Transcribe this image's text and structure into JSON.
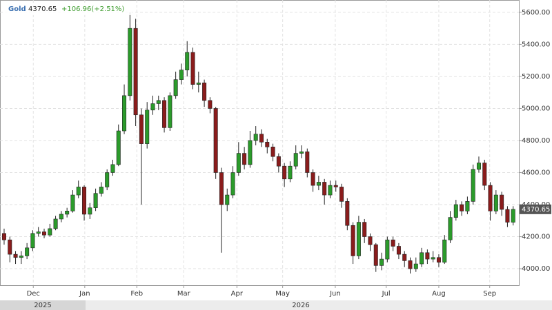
{
  "chart_data": {
    "type": "candlestick",
    "title": "Gold",
    "change_label": "+106.96(+2.51%)",
    "up_color": "#2b9b2b",
    "down_color": "#8a1c1c",
    "grid": true,
    "categories": [
      null,
      null,
      null,
      null,
      null,
      null,
      null,
      null,
      null,
      null,
      null,
      null,
      null,
      null,
      null,
      null,
      null,
      null,
      null,
      null,
      null,
      null,
      null,
      null,
      null,
      null,
      null,
      null,
      null,
      null,
      null,
      null,
      null,
      null,
      null,
      null,
      null,
      null,
      null,
      null,
      null,
      null,
      null,
      null,
      null,
      null,
      null,
      null,
      null,
      null,
      null,
      null,
      null,
      null,
      null,
      null,
      null,
      null,
      null,
      null,
      null,
      null,
      null,
      null,
      null,
      null,
      null,
      null,
      null,
      null,
      null,
      null,
      null,
      null,
      null,
      null,
      null,
      null,
      null,
      null,
      null,
      null,
      null,
      null,
      null,
      null,
      null,
      null,
      null,
      null
    ],
    "open": [
      4220,
      4180,
      4090,
      4070,
      4080,
      4130,
      4220,
      4230,
      4210,
      4250,
      4310,
      4340,
      4360,
      4460,
      4510,
      4340,
      4380,
      4470,
      4510,
      4600,
      4650,
      4860,
      5080,
      5500,
      4960,
      4780,
      4990,
      5030,
      5050,
      4880,
      5080,
      5180,
      5240,
      5350,
      5150,
      5160,
      5050,
      5000,
      4600,
      4400,
      4460,
      4600,
      4720,
      4650,
      4800,
      4840,
      4790,
      4760,
      4700,
      4640,
      4560,
      4640,
      4720,
      4730,
      4600,
      4520,
      4540,
      4460,
      4520,
      4510,
      4420,
      4270,
      4080,
      4290,
      4200,
      4150,
      4020,
      4060,
      4180,
      4140,
      4090,
      4050,
      4000,
      4030,
      4100,
      4060,
      4070,
      4040,
      4180,
      4320,
      4400,
      4360,
      4420,
      4620,
      4660,
      4520,
      4360,
      4460,
      4370,
      4290
    ],
    "high": [
      4250,
      4200,
      4110,
      4110,
      4160,
      4240,
      4260,
      4250,
      4280,
      4330,
      4360,
      4380,
      4490,
      4550,
      4520,
      4410,
      4500,
      4540,
      4620,
      4680,
      4900,
      5150,
      5600,
      5560,
      5000,
      5040,
      5080,
      5080,
      5070,
      5100,
      5230,
      5280,
      5420,
      5380,
      5230,
      5180,
      5070,
      5010,
      4630,
      4500,
      4640,
      4790,
      4760,
      4860,
      4890,
      4870,
      4810,
      4780,
      4720,
      4660,
      4670,
      4770,
      4770,
      4750,
      4620,
      4580,
      4560,
      4550,
      4550,
      4530,
      4440,
      4290,
      4330,
      4310,
      4220,
      4160,
      4100,
      4200,
      4200,
      4160,
      4110,
      4070,
      4070,
      4130,
      4120,
      4110,
      4090,
      4210,
      4360,
      4430,
      4420,
      4450,
      4650,
      4700,
      4680,
      4540,
      4490,
      4480,
      4390,
      4390
    ],
    "low": [
      4150,
      4040,
      4030,
      4030,
      4060,
      4110,
      4200,
      4190,
      4200,
      4240,
      4290,
      4320,
      4350,
      4440,
      4300,
      4310,
      4360,
      4450,
      4490,
      4580,
      4640,
      4840,
      5050,
      4890,
      4400,
      4750,
      4960,
      4990,
      4850,
      4860,
      5060,
      5150,
      5200,
      5120,
      5100,
      5010,
      4970,
      4560,
      4100,
      4360,
      4440,
      4580,
      4620,
      4630,
      4770,
      4760,
      4720,
      4670,
      4600,
      4510,
      4540,
      4620,
      4690,
      4570,
      4480,
      4490,
      4400,
      4440,
      4480,
      4380,
      4240,
      4030,
      4060,
      4160,
      4110,
      3980,
      3990,
      4040,
      4110,
      4060,
      4010,
      3970,
      3980,
      4010,
      4030,
      4040,
      4010,
      4030,
      4160,
      4300,
      4330,
      4340,
      4400,
      4600,
      4490,
      4300,
      4340,
      4330,
      4260,
      4270
    ],
    "close": [
      4180,
      4090,
      4070,
      4080,
      4130,
      4220,
      4230,
      4210,
      4250,
      4310,
      4340,
      4360,
      4460,
      4510,
      4340,
      4380,
      4470,
      4510,
      4600,
      4650,
      4860,
      5080,
      5500,
      4960,
      4780,
      4990,
      5030,
      5050,
      4880,
      5080,
      5180,
      5240,
      5350,
      5150,
      5160,
      5050,
      5000,
      4600,
      4400,
      4460,
      4600,
      4720,
      4650,
      4800,
      4840,
      4790,
      4760,
      4700,
      4640,
      4560,
      4640,
      4720,
      4730,
      4600,
      4520,
      4540,
      4460,
      4520,
      4510,
      4420,
      4270,
      4080,
      4290,
      4200,
      4150,
      4020,
      4060,
      4180,
      4140,
      4090,
      4050,
      4000,
      4030,
      4100,
      4060,
      4070,
      4040,
      4180,
      4320,
      4400,
      4360,
      4420,
      4620,
      4660,
      4520,
      4360,
      4460,
      4370,
      4290,
      4370.65
    ],
    "xlim": [
      -0.72,
      90
    ],
    "xticks": [
      {
        "value": 5.1,
        "label": "Dec"
      },
      {
        "value": 14.1,
        "label": "Jan"
      },
      {
        "value": 23.2,
        "label": "Feb"
      },
      {
        "value": 31.4,
        "label": "Mar"
      },
      {
        "value": 40.7,
        "label": "Apr"
      },
      {
        "value": 48.7,
        "label": "May"
      },
      {
        "value": 57.9,
        "label": "Jun"
      },
      {
        "value": 66.8,
        "label": "Jul"
      },
      {
        "value": 76,
        "label": "Aug"
      },
      {
        "value": 84.9,
        "label": "Sep"
      }
    ],
    "period_labels": [
      "2025",
      "2026"
    ],
    "ylim": [
      3897,
      5677
    ],
    "yticks": [
      {
        "value": 4000,
        "label": "4000.00"
      },
      {
        "value": 4200,
        "label": "4200.00"
      },
      {
        "value": 4400,
        "label": "4400.00"
      },
      {
        "value": 4600,
        "label": "4600.00"
      },
      {
        "value": 4800,
        "label": "4800.00"
      },
      {
        "value": 5000,
        "label": "5000.00"
      },
      {
        "value": 5200,
        "label": "5200.00"
      },
      {
        "value": 5400,
        "label": "5400.00"
      },
      {
        "value": 5600,
        "label": "5600.00"
      }
    ]
  }
}
